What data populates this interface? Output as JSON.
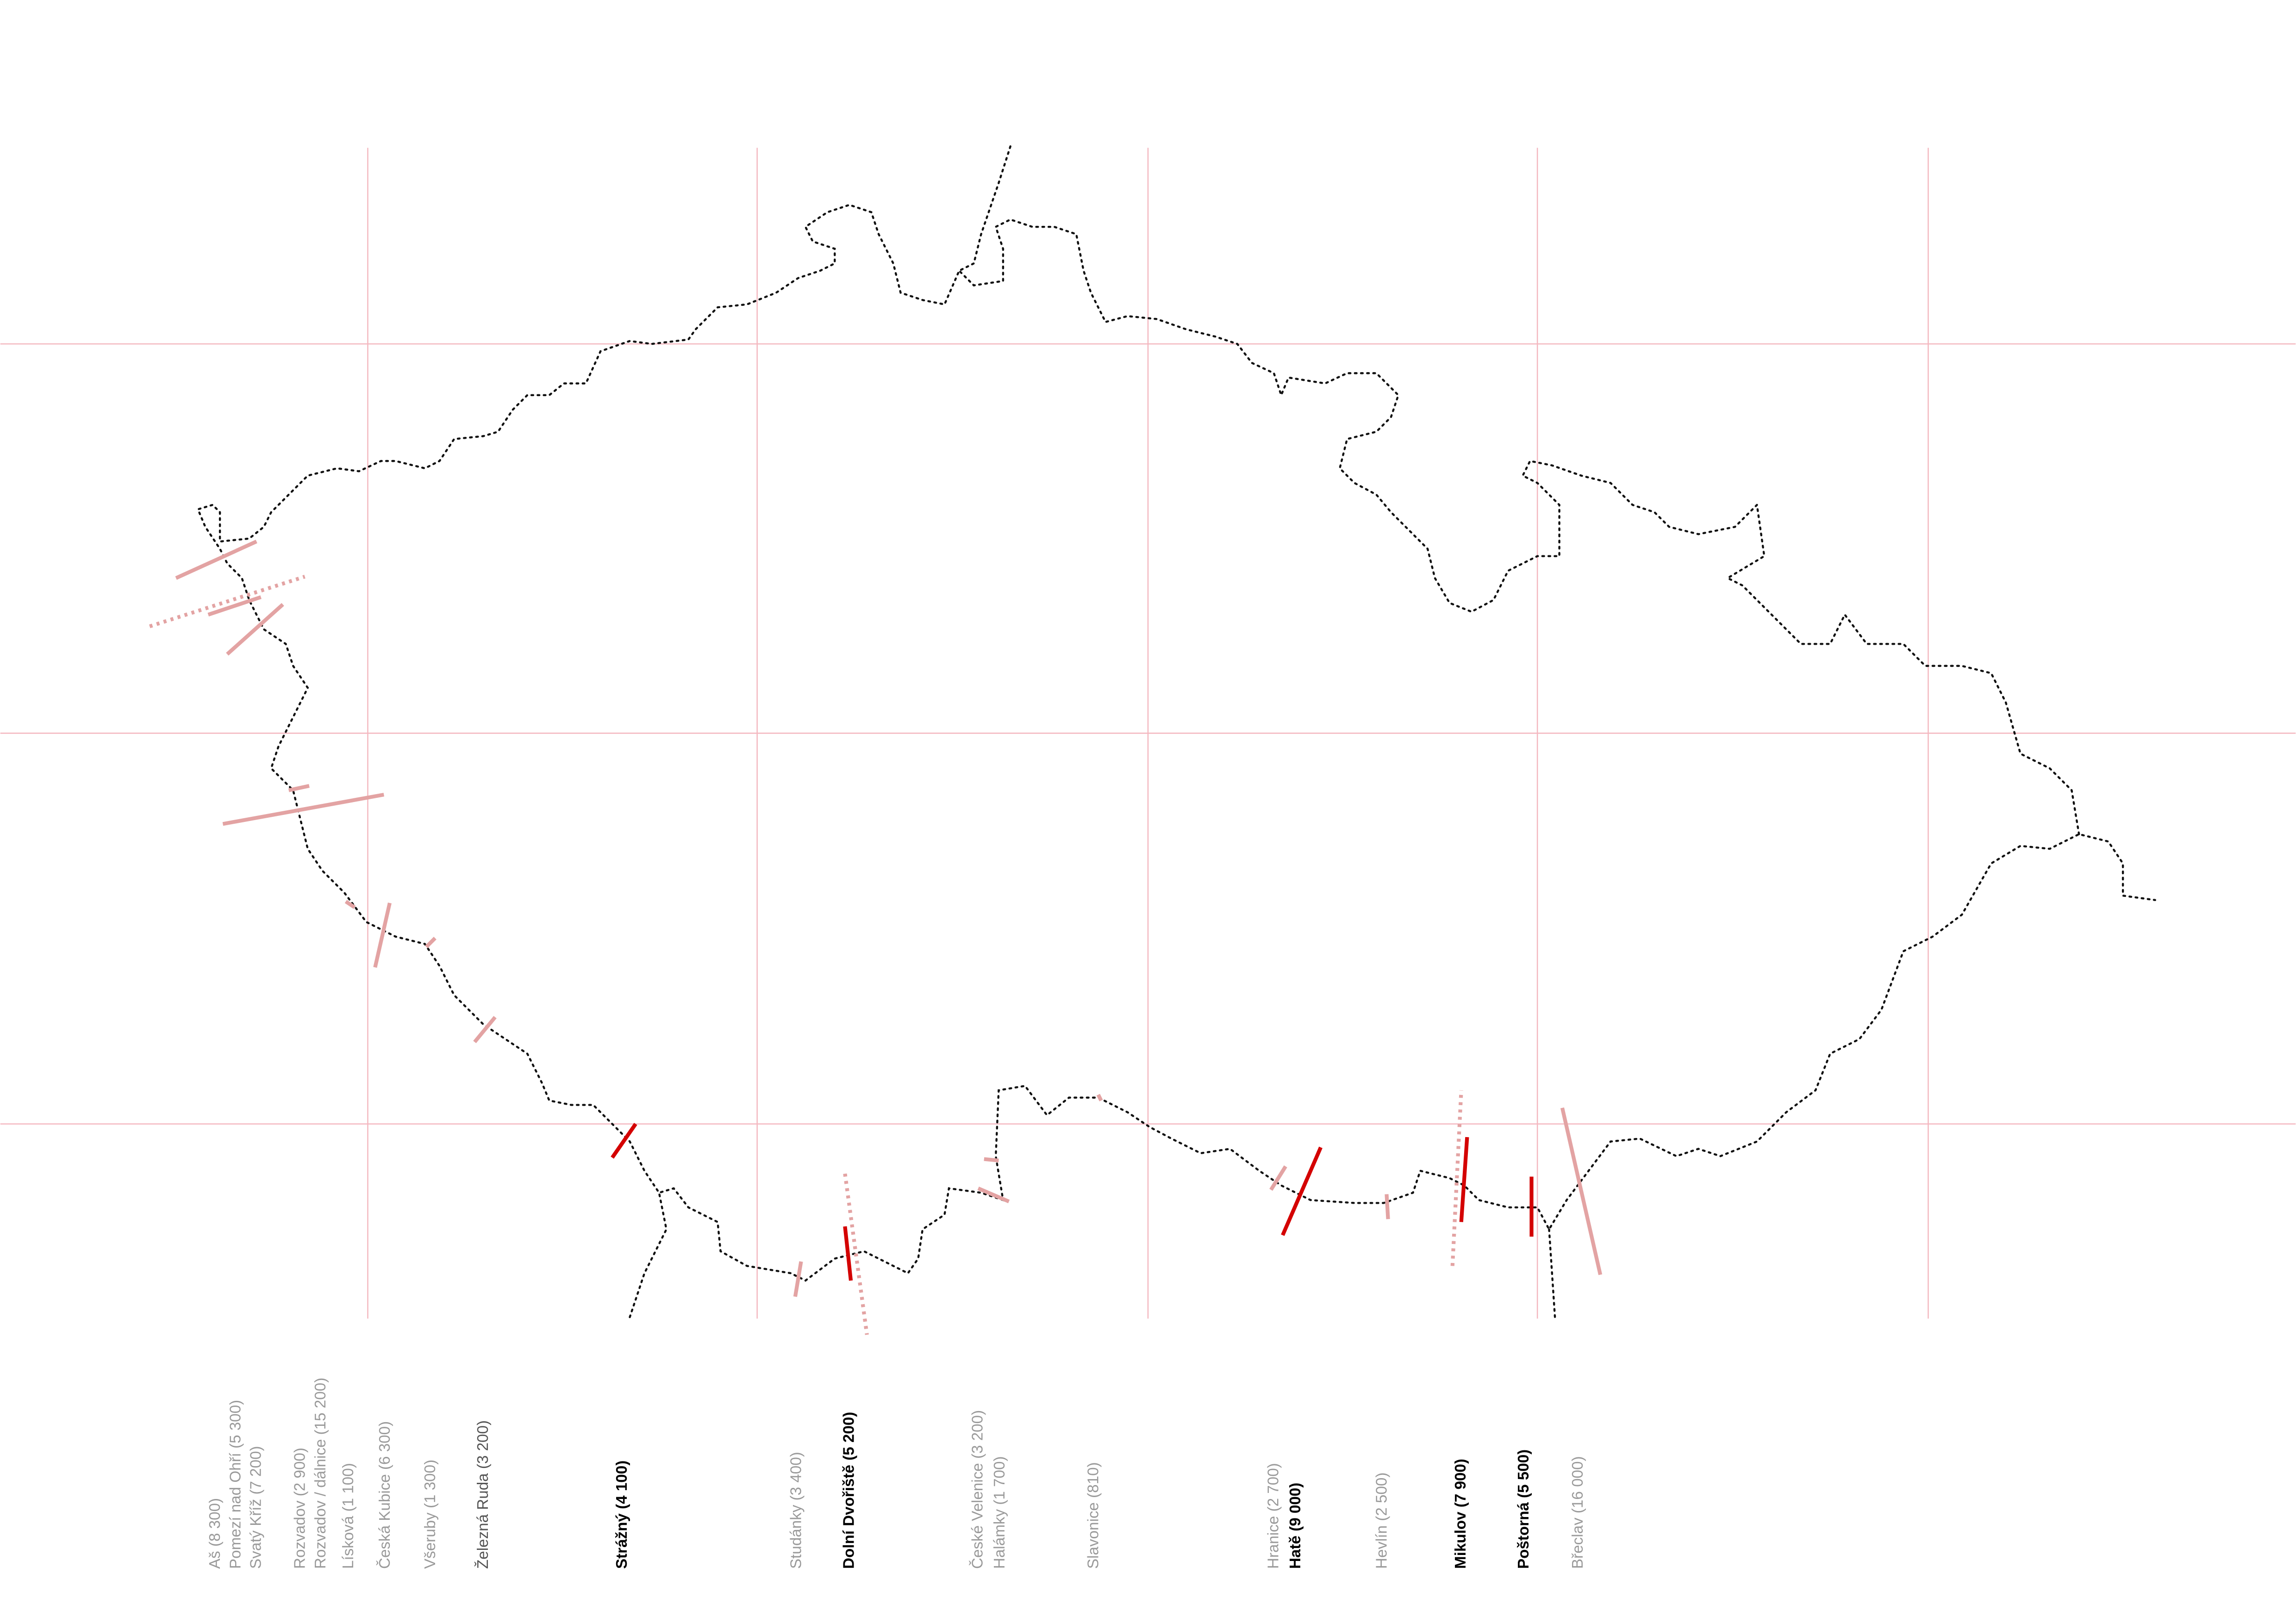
{
  "crossings": [
    {
      "label": "Aš (8 300)",
      "style": "faded"
    },
    {
      "label": "Pomezí nad Ohří (5 300)",
      "style": "faded"
    },
    {
      "label": "Svatý Kříž (7 200)",
      "style": "faded"
    },
    {
      "label": "Rozvadov (2 900)",
      "style": "faded"
    },
    {
      "label": "Rozvadov / dálnice (15 200)",
      "style": "faded"
    },
    {
      "label": "Lísková (1 100)",
      "style": "faded"
    },
    {
      "label": "Česká Kubice (6 300)",
      "style": "faded"
    },
    {
      "label": "Všeruby (1 300)",
      "style": "faded"
    },
    {
      "label": "Železná Ruda (3 200)",
      "style": "medium"
    },
    {
      "label": "Strážný (4 100)",
      "style": "bold"
    },
    {
      "label": "Studánky (3 400)",
      "style": "faded"
    },
    {
      "label": "Dolní Dvořiště (5 200)",
      "style": "bold"
    },
    {
      "label": "České Velenice (3 200)",
      "style": "faded"
    },
    {
      "label": "Halámky (1 700)",
      "style": "faded"
    },
    {
      "label": "Slavonice (810)",
      "style": "faded"
    },
    {
      "label": "Hranice (2 700)",
      "style": "faded"
    },
    {
      "label": "Hatě (9 000)",
      "style": "bold"
    },
    {
      "label": "Hevlín (2 500)",
      "style": "faded"
    },
    {
      "label": "Mikulov (7 900)",
      "style": "bold"
    },
    {
      "label": "Poštorná (5 500)",
      "style": "bold"
    },
    {
      "label": "Břeclav (16 000)",
      "style": "faded"
    }
  ]
}
